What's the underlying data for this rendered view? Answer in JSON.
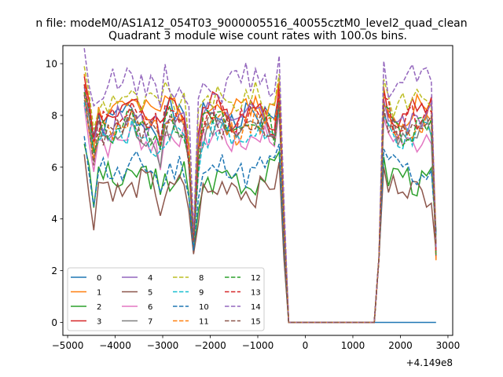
{
  "suptitle": "n file: modeM0/AS1A12_054T03_9000005516_40055cztM0_level2_quad_clean",
  "chart_data": {
    "type": "line",
    "title": "Quadrant 3 module wise count rates with 100.0s bins.",
    "xlabel": "",
    "ylabel": "",
    "x_offset_label": "+4.149e8",
    "xlim": [
      -5100,
      3100
    ],
    "ylim": [
      -0.5,
      10.7
    ],
    "xticks": [
      -5000,
      -4000,
      -3000,
      -2000,
      -1000,
      0,
      1000,
      2000,
      3000
    ],
    "yticks": [
      0,
      2,
      4,
      6,
      8,
      10
    ],
    "grid": false,
    "legend_position": "lower-left",
    "legend_columns": 4,
    "series": [
      {
        "name": "0",
        "color": "#1f77b4",
        "dash": "solid",
        "base": 7.9,
        "seed": 1
      },
      {
        "name": "1",
        "color": "#ff7f0e",
        "dash": "solid",
        "base": 8.3,
        "seed": 2
      },
      {
        "name": "2",
        "color": "#2ca02c",
        "dash": "solid",
        "base": 5.6,
        "seed": 3
      },
      {
        "name": "3",
        "color": "#d62728",
        "dash": "solid",
        "base": 8.2,
        "seed": 4
      },
      {
        "name": "4",
        "color": "#9467bd",
        "dash": "solid",
        "base": 7.8,
        "seed": 5
      },
      {
        "name": "5",
        "color": "#8c564b",
        "dash": "solid",
        "base": 5.2,
        "seed": 6
      },
      {
        "name": "6",
        "color": "#e377c2",
        "dash": "solid",
        "base": 7.1,
        "seed": 7
      },
      {
        "name": "7",
        "color": "#7f7f7f",
        "dash": "solid",
        "base": 7.3,
        "seed": 8
      },
      {
        "name": "8",
        "color": "#bcbd22",
        "dash": "dashed",
        "base": 8.6,
        "seed": 9
      },
      {
        "name": "9",
        "color": "#17becf",
        "dash": "dashed",
        "base": 7.2,
        "seed": 10
      },
      {
        "name": "10",
        "color": "#1f77b4",
        "dash": "dashed",
        "base": 5.9,
        "seed": 11
      },
      {
        "name": "11",
        "color": "#ff7f0e",
        "dash": "dashed",
        "base": 7.6,
        "seed": 12
      },
      {
        "name": "12",
        "color": "#2ca02c",
        "dash": "dashed",
        "base": 7.6,
        "seed": 13
      },
      {
        "name": "13",
        "color": "#d62728",
        "dash": "dashed",
        "base": 7.9,
        "seed": 14
      },
      {
        "name": "14",
        "color": "#9467bd",
        "dash": "dashed",
        "base": 9.3,
        "seed": 15
      },
      {
        "name": "15",
        "color": "#8c564b",
        "dash": "dashed",
        "base": 7.5,
        "seed": 16
      }
    ]
  }
}
